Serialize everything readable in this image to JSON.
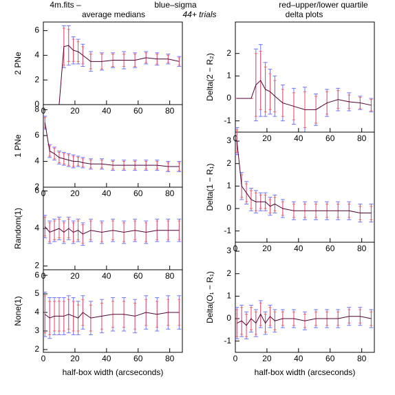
{
  "header": {
    "file": "4m.fits  –",
    "sigma_legend": "blue–sigma",
    "quartile_legend": "red–upper/lower quartile",
    "left_title": "average medians",
    "trials": "44+ trials",
    "right_title": "delta plots",
    "sigma_color": "#5a5aff",
    "quartile_color": "#ff4a4a"
  },
  "chart_data": [
    {
      "type": "line",
      "ylabel": "2 PNe",
      "x": [
        1,
        4,
        7,
        10,
        13,
        16,
        19,
        22,
        25,
        30,
        37,
        44,
        51,
        58,
        65,
        72,
        79,
        86
      ],
      "xlim": [
        0,
        88
      ],
      "xticks": [
        0,
        20,
        40,
        60,
        80
      ],
      "ylim": [
        0,
        6.7
      ],
      "yticks": [
        0,
        2,
        4,
        6
      ],
      "series": [
        {
          "color": "#500030",
          "values": [
            0,
            0,
            0,
            0,
            4.7,
            4.8,
            4.4,
            4.3,
            4.0,
            3.5,
            3.5,
            3.6,
            3.6,
            3.6,
            3.8,
            3.7,
            3.7,
            3.5
          ],
          "errors": [
            0,
            0,
            0,
            0,
            1.7,
            1.6,
            1.1,
            1.0,
            0.9,
            0.8,
            0.7,
            0.6,
            0.7,
            0.6,
            0.5,
            0.5,
            0.4,
            0.4
          ],
          "quartile_errors": [
            0,
            0,
            0,
            0,
            1.5,
            1.3,
            0.9,
            0.8,
            0.7,
            0.6,
            0.6,
            0.5,
            0.5,
            0.5,
            0.4,
            0.4,
            0.3,
            0.3
          ]
        }
      ]
    },
    {
      "type": "line",
      "ylabel": "1 PNe",
      "x": [
        1,
        4,
        7,
        10,
        13,
        16,
        19,
        22,
        25,
        30,
        37,
        44,
        51,
        58,
        65,
        72,
        79,
        86
      ],
      "xlim": [
        0,
        88
      ],
      "xticks": [
        0,
        20,
        40,
        60,
        80
      ],
      "ylim": [
        2,
        8.4
      ],
      "yticks": [
        2,
        4,
        6,
        8
      ],
      "series": [
        {
          "color": "#500030",
          "values": [
            7.0,
            4.8,
            4.6,
            4.3,
            4.2,
            4.1,
            4.0,
            4.0,
            3.9,
            3.8,
            3.8,
            3.7,
            3.7,
            3.7,
            3.7,
            3.7,
            3.6,
            3.6
          ],
          "errors": [
            0.5,
            0.5,
            0.5,
            0.5,
            0.5,
            0.5,
            0.5,
            0.4,
            0.4,
            0.4,
            0.4,
            0.4,
            0.4,
            0.4,
            0.4,
            0.4,
            0.4,
            0.4
          ],
          "quartile_errors": [
            0.4,
            0.4,
            0.4,
            0.4,
            0.4,
            0.4,
            0.4,
            0.3,
            0.3,
            0.3,
            0.3,
            0.3,
            0.3,
            0.3,
            0.3,
            0.3,
            0.3,
            0.3
          ]
        }
      ]
    },
    {
      "type": "line",
      "ylabel": "Random(1)",
      "x": [
        1,
        4,
        7,
        10,
        13,
        16,
        19,
        22,
        25,
        30,
        37,
        44,
        51,
        58,
        65,
        72,
        79,
        86
      ],
      "xlim": [
        0,
        88
      ],
      "xticks": [
        0,
        20,
        40,
        60,
        80
      ],
      "ylim": [
        1.8,
        6.2
      ],
      "yticks": [
        2,
        4,
        6
      ],
      "series": [
        {
          "color": "#500030",
          "values": [
            4.1,
            3.8,
            3.9,
            4.0,
            3.8,
            4.0,
            3.8,
            3.9,
            3.7,
            3.9,
            3.8,
            3.9,
            3.8,
            3.9,
            3.8,
            3.9,
            3.9,
            3.9
          ],
          "errors": [
            0.6,
            0.6,
            0.6,
            0.6,
            0.6,
            0.6,
            0.6,
            0.6,
            0.6,
            0.6,
            0.6,
            0.6,
            0.6,
            0.6,
            0.6,
            0.6,
            0.6,
            0.6
          ],
          "quartile_errors": [
            0.5,
            0.5,
            0.5,
            0.5,
            0.5,
            0.5,
            0.5,
            0.5,
            0.5,
            0.5,
            0.5,
            0.5,
            0.5,
            0.5,
            0.5,
            0.5,
            0.5,
            0.5
          ]
        }
      ]
    },
    {
      "type": "line",
      "ylabel": "None(1)",
      "xlabel": "half-box width (arcseconds)",
      "x": [
        1,
        4,
        7,
        10,
        13,
        16,
        19,
        22,
        25,
        30,
        37,
        44,
        51,
        58,
        65,
        72,
        79,
        86
      ],
      "xlim": [
        0,
        88
      ],
      "xticks": [
        0,
        20,
        40,
        60,
        80
      ],
      "ylim": [
        1.85,
        6.3
      ],
      "yticks": [
        2,
        3,
        4,
        5,
        6
      ],
      "series": [
        {
          "color": "#500030",
          "values": [
            3.9,
            3.7,
            3.8,
            3.8,
            3.8,
            3.9,
            3.8,
            3.7,
            4.0,
            3.7,
            3.8,
            3.9,
            3.9,
            3.8,
            4.0,
            3.9,
            4.0,
            4.0
          ],
          "errors": [
            1.2,
            1.1,
            1.0,
            1.0,
            1.0,
            1.0,
            1.0,
            0.9,
            0.9,
            0.9,
            0.9,
            0.9,
            0.9,
            0.9,
            0.9,
            0.9,
            0.9,
            0.9
          ],
          "quartile_errors": [
            1.0,
            0.9,
            0.8,
            0.8,
            0.8,
            0.8,
            0.8,
            0.7,
            0.7,
            0.7,
            0.7,
            0.7,
            0.7,
            0.7,
            0.7,
            0.7,
            0.7,
            0.7
          ]
        }
      ]
    },
    {
      "type": "line",
      "ylabel": "Delta(2 − R₂)",
      "x": [
        1,
        4,
        7,
        10,
        13,
        16,
        19,
        22,
        25,
        30,
        37,
        44,
        51,
        58,
        65,
        72,
        79,
        86
      ],
      "xlim": [
        0,
        88
      ],
      "xticks": [
        0,
        20,
        40,
        60,
        80
      ],
      "ylim": [
        -1.5,
        3.4
      ],
      "yticks": [
        -1,
        0,
        1,
        2
      ],
      "series": [
        {
          "color": "#500030",
          "values": [
            0,
            0,
            0,
            0,
            0.6,
            0.8,
            0.4,
            0.3,
            0.1,
            -0.2,
            -0.35,
            -0.5,
            -0.5,
            -0.2,
            -0.05,
            -0.15,
            -0.2,
            -0.3
          ],
          "errors": [
            0,
            0,
            0,
            0,
            1.6,
            1.6,
            1.2,
            1.0,
            0.9,
            0.8,
            0.8,
            1.0,
            0.7,
            0.6,
            0.5,
            0.4,
            0.3,
            0.3
          ],
          "quartile_errors": [
            0,
            0,
            0,
            0,
            1.4,
            1.3,
            1.0,
            0.8,
            0.7,
            0.6,
            0.6,
            0.8,
            0.6,
            0.5,
            0.4,
            0.3,
            0.25,
            0.25
          ]
        }
      ]
    },
    {
      "type": "line",
      "ylabel": "Delta(1 − R₁)",
      "x": [
        1,
        4,
        7,
        10,
        13,
        16,
        19,
        22,
        25,
        30,
        37,
        44,
        51,
        58,
        65,
        72,
        79,
        86
      ],
      "xlim": [
        0,
        88
      ],
      "xticks": [
        0,
        20,
        40,
        60,
        80
      ],
      "ylim": [
        -1.5,
        3.4
      ],
      "yticks": [
        -1,
        0,
        1,
        2,
        3
      ],
      "series": [
        {
          "color": "#500030",
          "values": [
            3.0,
            1.0,
            0.7,
            0.4,
            0.3,
            0.3,
            0.3,
            0.1,
            0.2,
            0.0,
            -0.1,
            -0.1,
            -0.1,
            -0.1,
            -0.1,
            -0.1,
            -0.2,
            -0.2
          ],
          "errors": [
            0.6,
            0.6,
            0.5,
            0.5,
            0.5,
            0.4,
            0.4,
            0.4,
            0.4,
            0.4,
            0.4,
            0.4,
            0.4,
            0.4,
            0.4,
            0.4,
            0.4,
            0.4
          ],
          "quartile_errors": [
            0.5,
            0.5,
            0.4,
            0.4,
            0.4,
            0.3,
            0.3,
            0.3,
            0.3,
            0.3,
            0.3,
            0.3,
            0.3,
            0.3,
            0.3,
            0.3,
            0.3,
            0.3
          ]
        }
      ]
    },
    {
      "type": "line",
      "ylabel": "Delta(O₁ − R₁)",
      "xlabel": "half-box width (arcseconds)",
      "x": [
        1,
        4,
        7,
        10,
        13,
        16,
        19,
        22,
        25,
        30,
        37,
        44,
        51,
        58,
        65,
        72,
        79,
        86
      ],
      "xlim": [
        0,
        88
      ],
      "xticks": [
        0,
        20,
        40,
        60,
        80
      ],
      "ylim": [
        -1.5,
        3.4
      ],
      "yticks": [
        -1,
        0,
        1,
        2,
        3
      ],
      "series": [
        {
          "color": "#500030",
          "values": [
            -0.2,
            -0.1,
            -0.3,
            0.0,
            -0.2,
            0.2,
            -0.2,
            0.1,
            -0.1,
            0.0,
            0.0,
            -0.1,
            0.0,
            0.0,
            0.0,
            0.1,
            0.1,
            0.0
          ],
          "errors": [
            0.7,
            0.7,
            0.6,
            0.6,
            0.6,
            0.6,
            0.5,
            0.5,
            0.5,
            0.4,
            0.4,
            0.4,
            0.4,
            0.4,
            0.4,
            0.4,
            0.4,
            0.4
          ],
          "quartile_errors": [
            0.6,
            0.6,
            0.5,
            0.5,
            0.5,
            0.5,
            0.4,
            0.4,
            0.4,
            0.3,
            0.3,
            0.3,
            0.3,
            0.3,
            0.3,
            0.3,
            0.3,
            0.3
          ]
        }
      ]
    }
  ]
}
